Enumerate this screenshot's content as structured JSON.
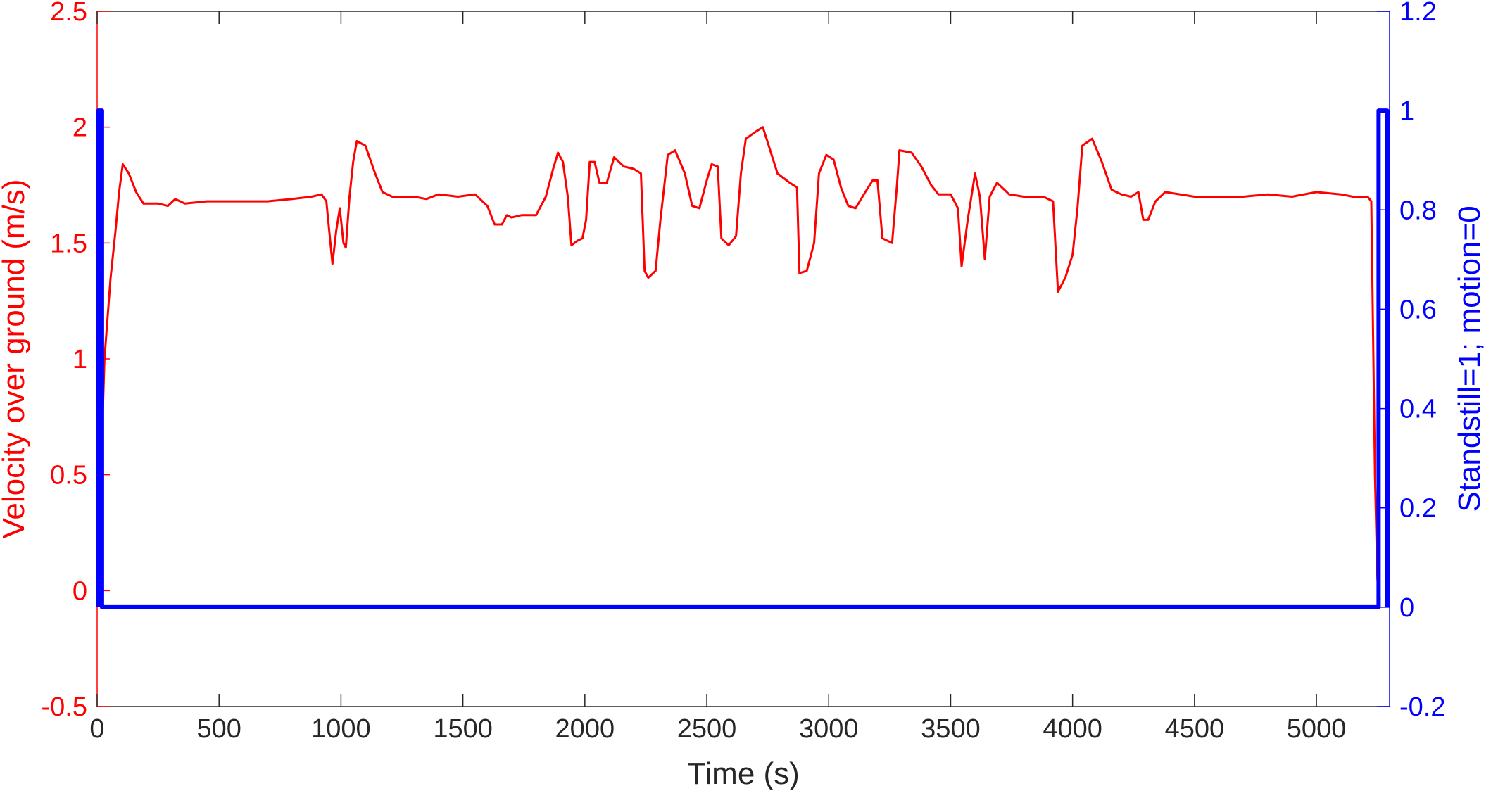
{
  "chart_data": {
    "type": "line",
    "xlabel": "Time (s)",
    "ylabel_left": "Velocity over ground (m/s)",
    "ylabel_right": "Standstill=1; motion=0",
    "xlim": [
      0,
      5300
    ],
    "ylim_left": [
      -0.5,
      2.5
    ],
    "ylim_right": [
      -0.2,
      1.2
    ],
    "x_ticks": [
      0,
      500,
      1000,
      1500,
      2000,
      2500,
      3000,
      3500,
      4000,
      4500,
      5000
    ],
    "y_left_ticks": [
      -0.5,
      0,
      0.5,
      1,
      1.5,
      2,
      2.5
    ],
    "y_left_tick_labels": [
      "-0.5",
      "0",
      "0.5",
      "1",
      "1.5",
      "2",
      "2.5"
    ],
    "y_right_ticks": [
      -0.2,
      0,
      0.2,
      0.4,
      0.6,
      0.8,
      1,
      1.2
    ],
    "y_right_tick_labels": [
      "-0.2",
      "0",
      "0.2",
      "0.4",
      "0.6",
      "0.8",
      "1",
      "1.2"
    ],
    "grid": false,
    "colors": {
      "left": "#ff0000",
      "right": "#0000ff",
      "axis": "#262626"
    },
    "series": [
      {
        "axis": "left",
        "color": "#ff0000",
        "points": [
          [
            5,
            -0.03
          ],
          [
            15,
            0.5
          ],
          [
            30,
            1.0
          ],
          [
            55,
            1.35
          ],
          [
            75,
            1.55
          ],
          [
            90,
            1.72
          ],
          [
            105,
            1.84
          ],
          [
            130,
            1.8
          ],
          [
            160,
            1.72
          ],
          [
            190,
            1.67
          ],
          [
            250,
            1.67
          ],
          [
            290,
            1.66
          ],
          [
            320,
            1.69
          ],
          [
            360,
            1.67
          ],
          [
            450,
            1.68
          ],
          [
            600,
            1.68
          ],
          [
            700,
            1.68
          ],
          [
            800,
            1.69
          ],
          [
            880,
            1.7
          ],
          [
            920,
            1.71
          ],
          [
            940,
            1.68
          ],
          [
            965,
            1.41
          ],
          [
            980,
            1.55
          ],
          [
            995,
            1.65
          ],
          [
            1010,
            1.5
          ],
          [
            1020,
            1.48
          ],
          [
            1035,
            1.7
          ],
          [
            1050,
            1.85
          ],
          [
            1065,
            1.94
          ],
          [
            1100,
            1.92
          ],
          [
            1140,
            1.8
          ],
          [
            1170,
            1.72
          ],
          [
            1210,
            1.7
          ],
          [
            1300,
            1.7
          ],
          [
            1350,
            1.69
          ],
          [
            1400,
            1.71
          ],
          [
            1480,
            1.7
          ],
          [
            1550,
            1.71
          ],
          [
            1600,
            1.66
          ],
          [
            1630,
            1.58
          ],
          [
            1660,
            1.58
          ],
          [
            1680,
            1.62
          ],
          [
            1700,
            1.61
          ],
          [
            1740,
            1.62
          ],
          [
            1800,
            1.62
          ],
          [
            1840,
            1.7
          ],
          [
            1870,
            1.82
          ],
          [
            1890,
            1.89
          ],
          [
            1910,
            1.85
          ],
          [
            1930,
            1.7
          ],
          [
            1945,
            1.49
          ],
          [
            1970,
            1.51
          ],
          [
            1990,
            1.52
          ],
          [
            2005,
            1.6
          ],
          [
            2020,
            1.85
          ],
          [
            2040,
            1.85
          ],
          [
            2060,
            1.76
          ],
          [
            2090,
            1.76
          ],
          [
            2120,
            1.87
          ],
          [
            2160,
            1.83
          ],
          [
            2200,
            1.82
          ],
          [
            2230,
            1.8
          ],
          [
            2245,
            1.38
          ],
          [
            2260,
            1.35
          ],
          [
            2290,
            1.38
          ],
          [
            2310,
            1.6
          ],
          [
            2340,
            1.88
          ],
          [
            2370,
            1.9
          ],
          [
            2410,
            1.8
          ],
          [
            2440,
            1.66
          ],
          [
            2470,
            1.65
          ],
          [
            2500,
            1.77
          ],
          [
            2520,
            1.84
          ],
          [
            2545,
            1.83
          ],
          [
            2560,
            1.52
          ],
          [
            2590,
            1.49
          ],
          [
            2620,
            1.53
          ],
          [
            2640,
            1.8
          ],
          [
            2660,
            1.95
          ],
          [
            2700,
            1.98
          ],
          [
            2730,
            2.0
          ],
          [
            2760,
            1.9
          ],
          [
            2790,
            1.8
          ],
          [
            2840,
            1.76
          ],
          [
            2870,
            1.74
          ],
          [
            2880,
            1.37
          ],
          [
            2910,
            1.38
          ],
          [
            2940,
            1.5
          ],
          [
            2960,
            1.8
          ],
          [
            2990,
            1.88
          ],
          [
            3020,
            1.86
          ],
          [
            3050,
            1.74
          ],
          [
            3080,
            1.66
          ],
          [
            3110,
            1.65
          ],
          [
            3150,
            1.72
          ],
          [
            3180,
            1.77
          ],
          [
            3200,
            1.77
          ],
          [
            3220,
            1.52
          ],
          [
            3260,
            1.5
          ],
          [
            3280,
            1.75
          ],
          [
            3290,
            1.9
          ],
          [
            3340,
            1.89
          ],
          [
            3380,
            1.83
          ],
          [
            3420,
            1.75
          ],
          [
            3450,
            1.71
          ],
          [
            3500,
            1.71
          ],
          [
            3530,
            1.65
          ],
          [
            3545,
            1.4
          ],
          [
            3570,
            1.6
          ],
          [
            3600,
            1.8
          ],
          [
            3620,
            1.7
          ],
          [
            3640,
            1.43
          ],
          [
            3660,
            1.7
          ],
          [
            3690,
            1.76
          ],
          [
            3740,
            1.71
          ],
          [
            3800,
            1.7
          ],
          [
            3880,
            1.7
          ],
          [
            3920,
            1.68
          ],
          [
            3940,
            1.29
          ],
          [
            3970,
            1.35
          ],
          [
            4000,
            1.45
          ],
          [
            4020,
            1.65
          ],
          [
            4040,
            1.92
          ],
          [
            4080,
            1.95
          ],
          [
            4120,
            1.85
          ],
          [
            4160,
            1.73
          ],
          [
            4200,
            1.71
          ],
          [
            4240,
            1.7
          ],
          [
            4270,
            1.72
          ],
          [
            4290,
            1.6
          ],
          [
            4310,
            1.6
          ],
          [
            4340,
            1.68
          ],
          [
            4380,
            1.72
          ],
          [
            4500,
            1.7
          ],
          [
            4700,
            1.7
          ],
          [
            4800,
            1.71
          ],
          [
            4900,
            1.7
          ],
          [
            5000,
            1.72
          ],
          [
            5100,
            1.71
          ],
          [
            5150,
            1.7
          ],
          [
            5210,
            1.7
          ],
          [
            5225,
            1.68
          ],
          [
            5240,
            0.5
          ],
          [
            5250,
            0.05
          ],
          [
            5260,
            -0.04
          ]
        ]
      },
      {
        "axis": "right",
        "color": "#0000ff",
        "points": [
          [
            5,
            0
          ],
          [
            5,
            1
          ],
          [
            20,
            1
          ],
          [
            20,
            0
          ],
          [
            5255,
            0
          ],
          [
            5255,
            1
          ],
          [
            5290,
            1
          ],
          [
            5290,
            0
          ]
        ]
      }
    ]
  }
}
